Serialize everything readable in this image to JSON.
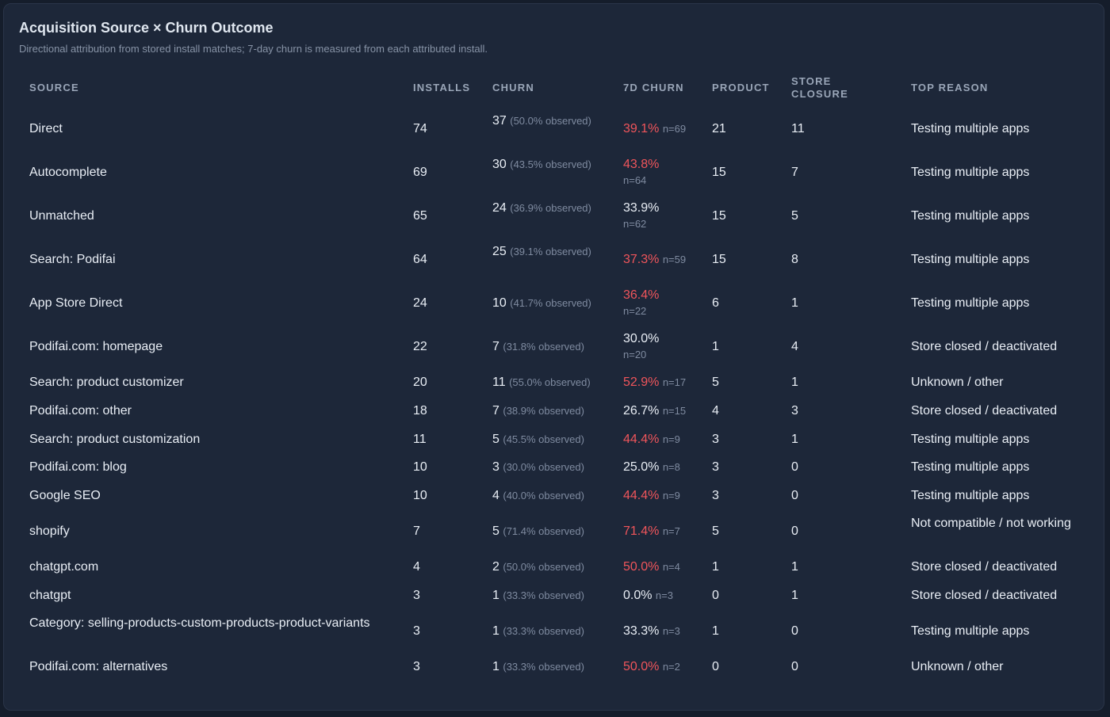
{
  "title": "Acquisition Source × Churn Outcome",
  "subtitle": "Directional attribution from stored install matches; 7-day churn is measured from each attributed install.",
  "headers": {
    "source": "SOURCE",
    "installs": "INSTALLS",
    "churn": "CHURN",
    "churn7d": "7D CHURN",
    "product": "PRODUCT",
    "store1": "STORE",
    "store2": "CLOSURE",
    "reason": "TOP REASON"
  },
  "colors": {
    "alert": "#f0555b",
    "text": "#e9eef5",
    "muted": "#7f8ba0"
  },
  "rows": [
    {
      "source": "Direct",
      "installs": "74",
      "churn": "37",
      "churn_obs": "(50.0% observed)",
      "churn7d": "39.1%",
      "n": "n=69",
      "alert": true,
      "product": "21",
      "store": "11",
      "reason": "Testing multiple apps"
    },
    {
      "source": "Autocomplete",
      "installs": "69",
      "churn": "30",
      "churn_obs": "(43.5% observed)",
      "churn7d": "43.8%",
      "n": "n=64",
      "alert": true,
      "product": "15",
      "store": "7",
      "reason": "Testing multiple apps"
    },
    {
      "source": "Unmatched",
      "installs": "65",
      "churn": "24",
      "churn_obs": "(36.9% observed)",
      "churn7d": "33.9%",
      "n": "n=62",
      "alert": false,
      "product": "15",
      "store": "5",
      "reason": "Testing multiple apps"
    },
    {
      "source": "Search: Podifai",
      "installs": "64",
      "churn": "25",
      "churn_obs": "(39.1% observed)",
      "churn7d": "37.3%",
      "n": "n=59",
      "alert": true,
      "product": "15",
      "store": "8",
      "reason": "Testing multiple apps"
    },
    {
      "source": "App Store Direct",
      "installs": "24",
      "churn": "10",
      "churn_obs": "(41.7% observed)",
      "churn7d": "36.4%",
      "n": "n=22",
      "alert": true,
      "product": "6",
      "store": "1",
      "reason": "Testing multiple apps"
    },
    {
      "source": "Podifai.com: homepage",
      "installs": "22",
      "churn": "7",
      "churn_obs": "(31.8% observed)",
      "churn7d": "30.0%",
      "n": "n=20",
      "alert": false,
      "product": "1",
      "store": "4",
      "reason": "Store closed / deactivated"
    },
    {
      "source": "Search: product customizer",
      "installs": "20",
      "churn": "11",
      "churn_obs": "(55.0% observed)",
      "churn7d": "52.9%",
      "n": "n=17",
      "alert": true,
      "product": "5",
      "store": "1",
      "reason": "Unknown / other"
    },
    {
      "source": "Podifai.com: other",
      "installs": "18",
      "churn": "7",
      "churn_obs": "(38.9% observed)",
      "churn7d": "26.7%",
      "n": "n=15",
      "alert": false,
      "product": "4",
      "store": "3",
      "reason": "Store closed / deactivated"
    },
    {
      "source": "Search: product customization",
      "installs": "11",
      "churn": "5",
      "churn_obs": "(45.5% observed)",
      "churn7d": "44.4%",
      "n": "n=9",
      "alert": true,
      "product": "3",
      "store": "1",
      "reason": "Testing multiple apps"
    },
    {
      "source": "Podifai.com: blog",
      "installs": "10",
      "churn": "3",
      "churn_obs": "(30.0% observed)",
      "churn7d": "25.0%",
      "n": "n=8",
      "alert": false,
      "product": "3",
      "store": "0",
      "reason": "Testing multiple apps"
    },
    {
      "source": "Google SEO",
      "installs": "10",
      "churn": "4",
      "churn_obs": "(40.0% observed)",
      "churn7d": "44.4%",
      "n": "n=9",
      "alert": true,
      "product": "3",
      "store": "0",
      "reason": "Testing multiple apps"
    },
    {
      "source": "shopify",
      "installs": "7",
      "churn": "5",
      "churn_obs": "(71.4% observed)",
      "churn7d": "71.4%",
      "n": "n=7",
      "alert": true,
      "product": "5",
      "store": "0",
      "reason": "Not compatible / not working"
    },
    {
      "source": "chatgpt.com",
      "installs": "4",
      "churn": "2",
      "churn_obs": "(50.0% observed)",
      "churn7d": "50.0%",
      "n": "n=4",
      "alert": true,
      "product": "1",
      "store": "1",
      "reason": "Store closed / deactivated"
    },
    {
      "source": "chatgpt",
      "installs": "3",
      "churn": "1",
      "churn_obs": "(33.3% observed)",
      "churn7d": "0.0%",
      "n": "n=3",
      "alert": false,
      "product": "0",
      "store": "1",
      "reason": "Store closed / deactivated"
    },
    {
      "source": "Category: selling-products-custom-products-product-variants",
      "installs": "3",
      "churn": "1",
      "churn_obs": "(33.3% observed)",
      "churn7d": "33.3%",
      "n": "n=3",
      "alert": false,
      "product": "1",
      "store": "0",
      "reason": "Testing multiple apps"
    },
    {
      "source": "Podifai.com: alternatives",
      "installs": "3",
      "churn": "1",
      "churn_obs": "(33.3% observed)",
      "churn7d": "50.0%",
      "n": "n=2",
      "alert": true,
      "product": "0",
      "store": "0",
      "reason": "Unknown / other"
    }
  ]
}
